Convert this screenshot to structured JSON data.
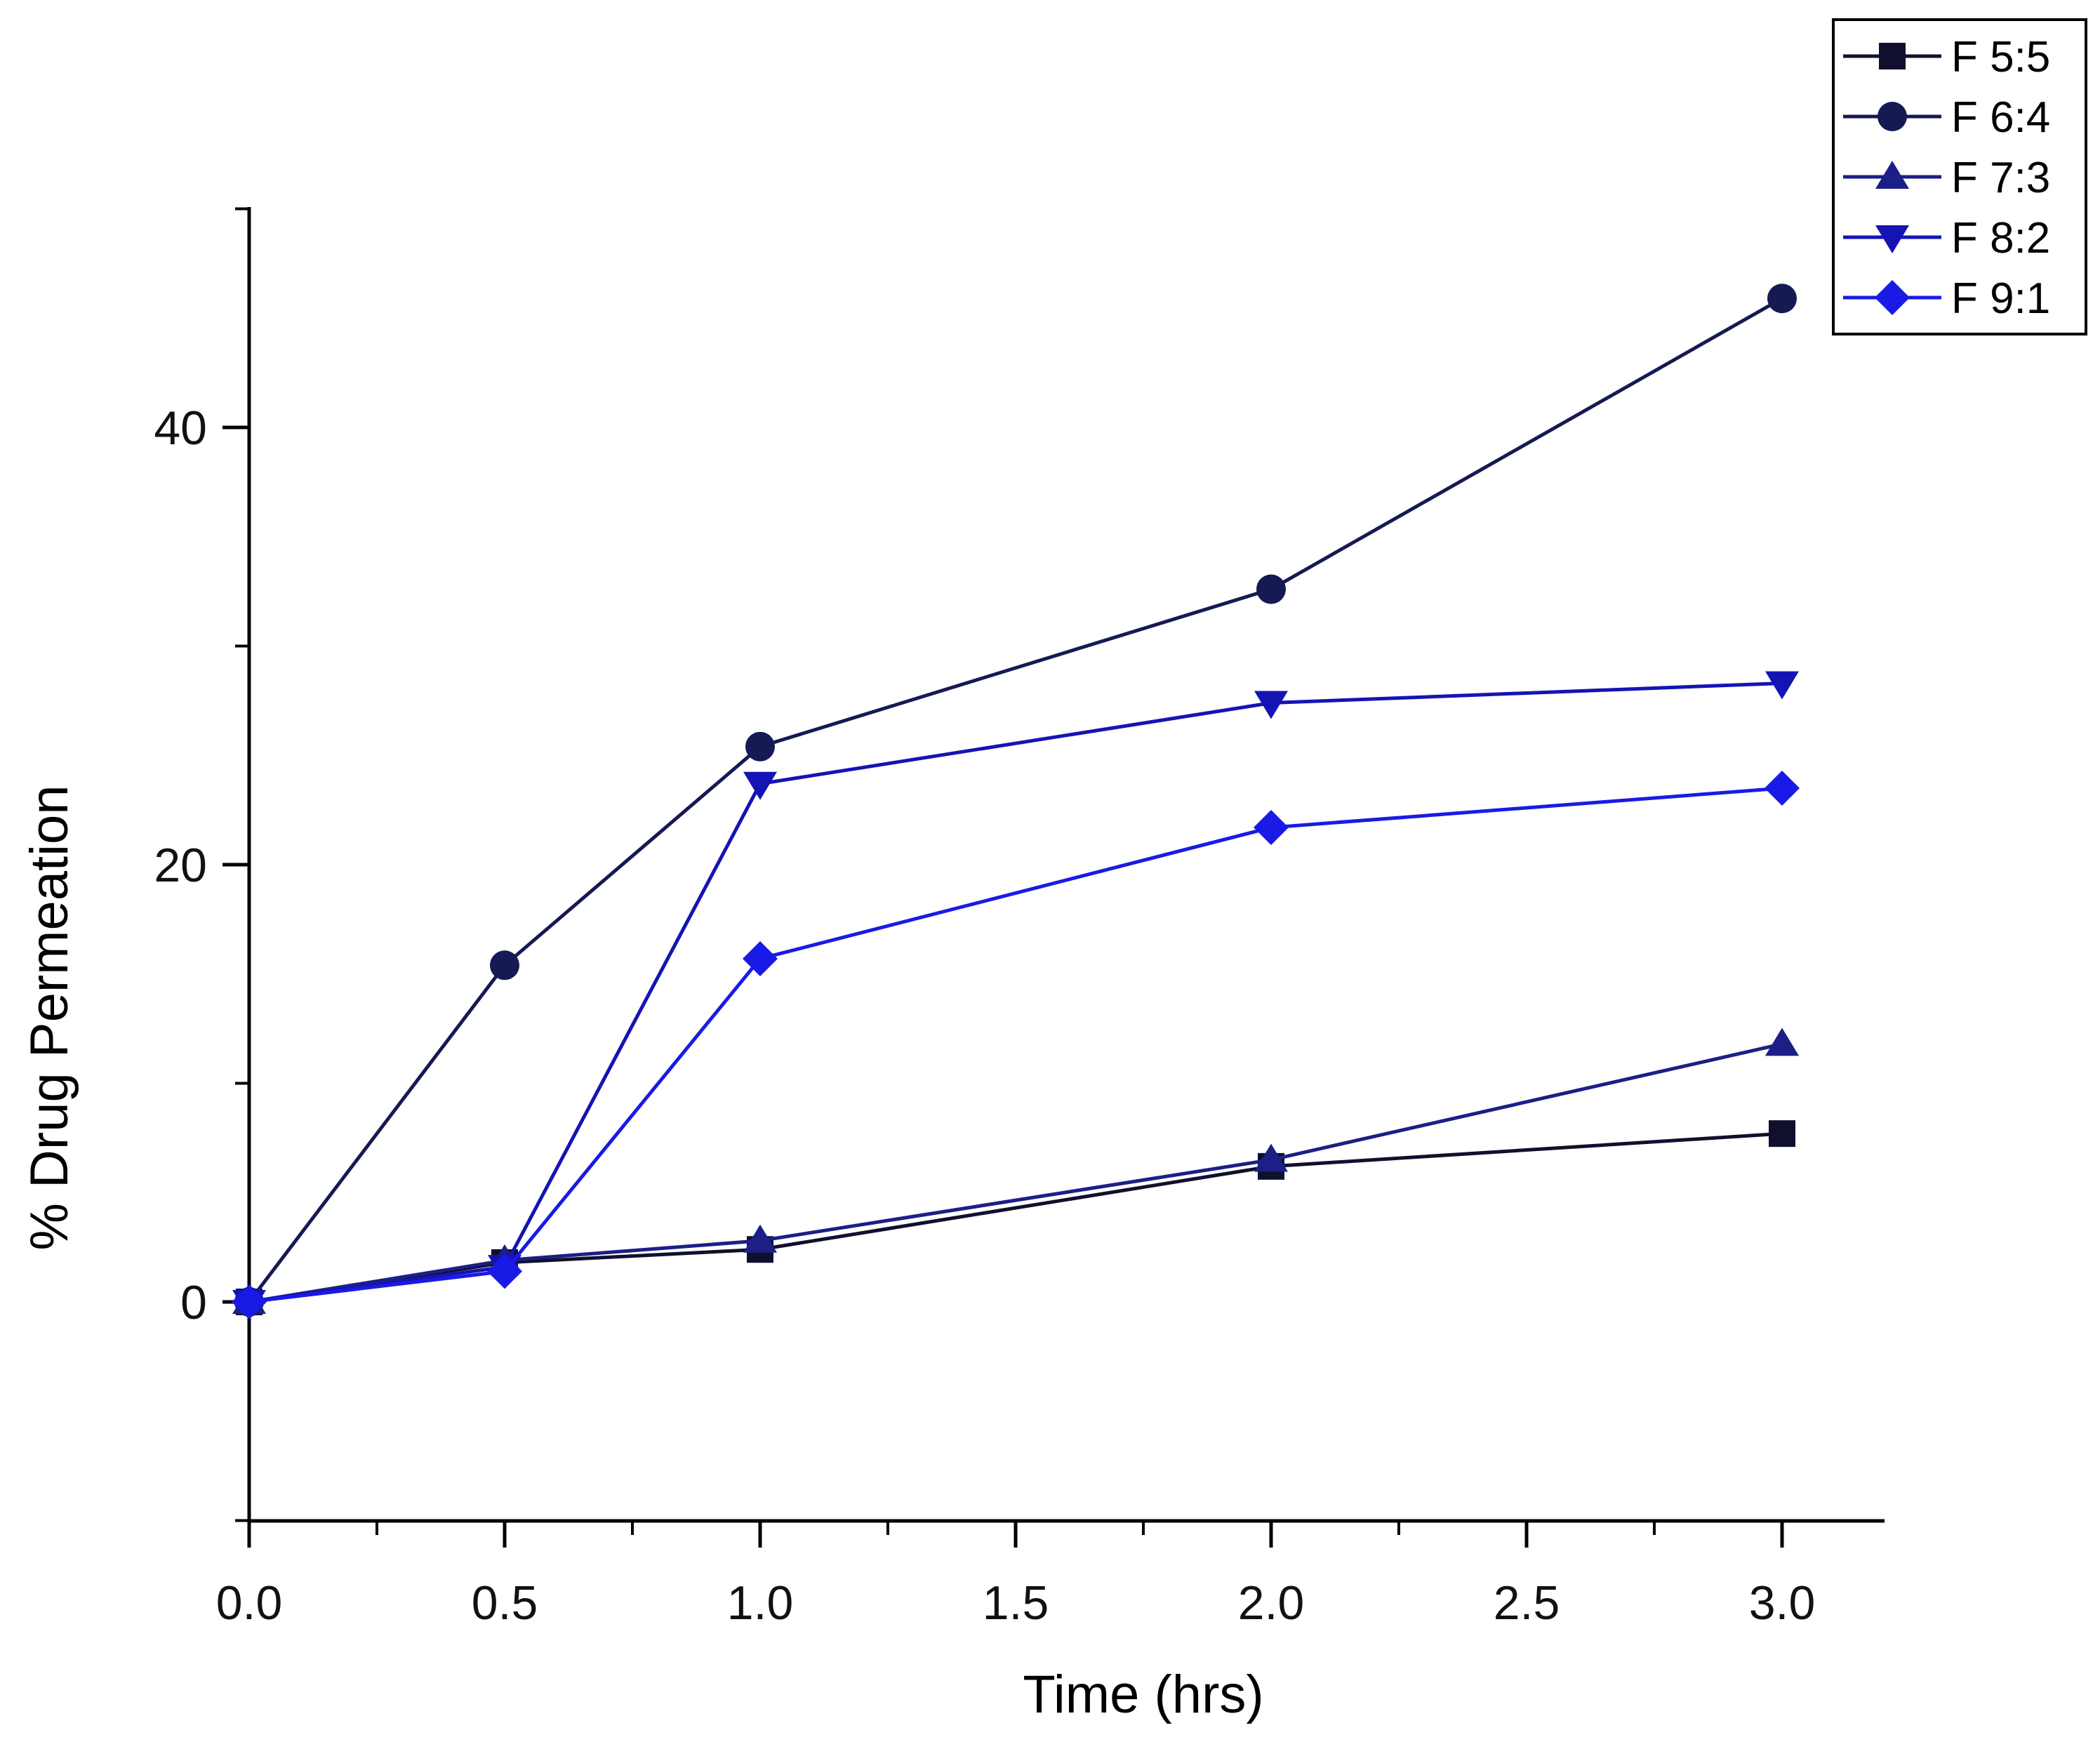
{
  "chart_data": {
    "type": "line",
    "title": "",
    "xlabel": "Time (hrs)",
    "ylabel": "% Drug Permeation",
    "xlim": [
      0,
      3.2
    ],
    "ylim": [
      -10,
      50
    ],
    "x_ticks": [
      "0.0",
      "0.5",
      "1.0",
      "1.5",
      "2.0",
      "2.5",
      "3.0"
    ],
    "x_tick_values": [
      0,
      0.5,
      1.0,
      1.5,
      2.0,
      2.5,
      3.0
    ],
    "y_ticks": [
      "0",
      "20",
      "40"
    ],
    "y_tick_values": [
      0,
      20,
      40
    ],
    "x": [
      0,
      0.5,
      1.0,
      2.0,
      3.0
    ],
    "legend_position": "top-right",
    "series": [
      {
        "name": "F 5:5",
        "marker": "square",
        "color": "#10102e",
        "values": [
          0,
          1.8,
          2.4,
          6.2,
          7.7
        ]
      },
      {
        "name": "F 6:4",
        "marker": "circle",
        "color": "#151a55",
        "values": [
          0,
          15.4,
          25.4,
          32.6,
          45.9
        ]
      },
      {
        "name": "F 7:3",
        "marker": "triangle-up",
        "color": "#1c1f86",
        "values": [
          0,
          1.9,
          2.8,
          6.5,
          11.8
        ]
      },
      {
        "name": "F 8:2",
        "marker": "triangle-down",
        "color": "#1414b4",
        "values": [
          0,
          1.6,
          23.7,
          27.4,
          28.3
        ]
      },
      {
        "name": "F 9:1",
        "marker": "diamond",
        "color": "#1a1ae6",
        "values": [
          0,
          1.4,
          15.7,
          21.7,
          23.5
        ]
      }
    ]
  }
}
